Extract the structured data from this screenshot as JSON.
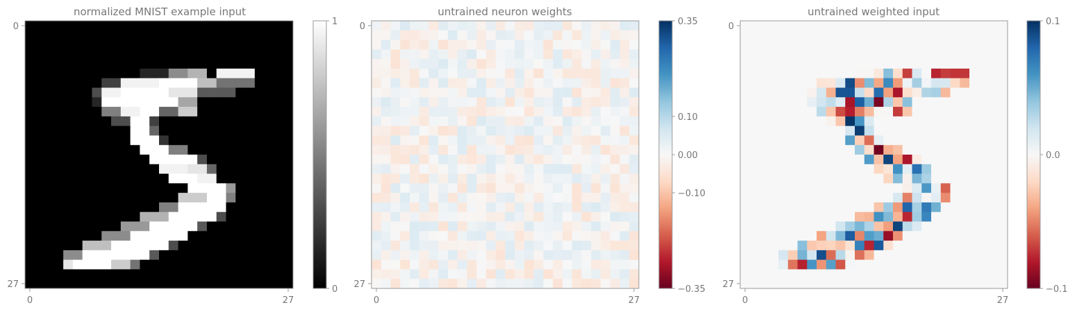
{
  "panels": [
    {
      "title": "normalized MNIST example input",
      "x_ticks": [
        "0",
        "27"
      ],
      "y_ticks": [
        "0",
        "27"
      ],
      "colorbar": {
        "cmap": "gray",
        "range": [
          0,
          1
        ],
        "ticks": [
          "1",
          "0"
        ]
      }
    },
    {
      "title": "untrained neuron weights",
      "x_ticks": [
        "0",
        "27"
      ],
      "y_ticks": [
        "0",
        "27"
      ],
      "colorbar": {
        "cmap": "RdBu",
        "range": [
          -0.35,
          0.35
        ],
        "ticks": [
          "0.35",
          "0.10",
          "0.00",
          "−0.10",
          "−0.35"
        ]
      }
    },
    {
      "title": "untrained weighted input",
      "x_ticks": [
        "0",
        "27"
      ],
      "y_ticks": [
        "0",
        "27"
      ],
      "colorbar": {
        "cmap": "RdBu",
        "range": [
          -0.1,
          0.1
        ],
        "ticks": [
          "0.1",
          "0.0",
          "−0.1"
        ]
      }
    }
  ],
  "chart_data": [
    {
      "type": "heatmap",
      "title": "normalized MNIST example input",
      "shape": [
        28,
        28
      ],
      "colormap": "gray",
      "value_range": [
        0,
        1
      ],
      "description_of_values": "pixel intensity of the handwritten digit 5",
      "xticks": [
        0,
        27
      ],
      "yticks": [
        0,
        27
      ]
    },
    {
      "type": "heatmap",
      "title": "untrained neuron weights",
      "shape": [
        28,
        28
      ],
      "colormap": "RdBu",
      "value_range": [
        -0.35,
        0.35
      ],
      "colorbar_ticks": [
        0.35,
        0.1,
        0.0,
        -0.1,
        -0.35
      ],
      "xticks": [
        0,
        27
      ],
      "yticks": [
        0,
        27
      ]
    },
    {
      "type": "heatmap",
      "title": "untrained weighted input",
      "shape": [
        28,
        28
      ],
      "colormap": "RdBu",
      "value_range": [
        -0.1,
        0.1
      ],
      "colorbar_ticks": [
        0.1,
        0.0,
        -0.1
      ],
      "xticks": [
        0,
        27
      ],
      "yticks": [
        0,
        27
      ]
    }
  ]
}
